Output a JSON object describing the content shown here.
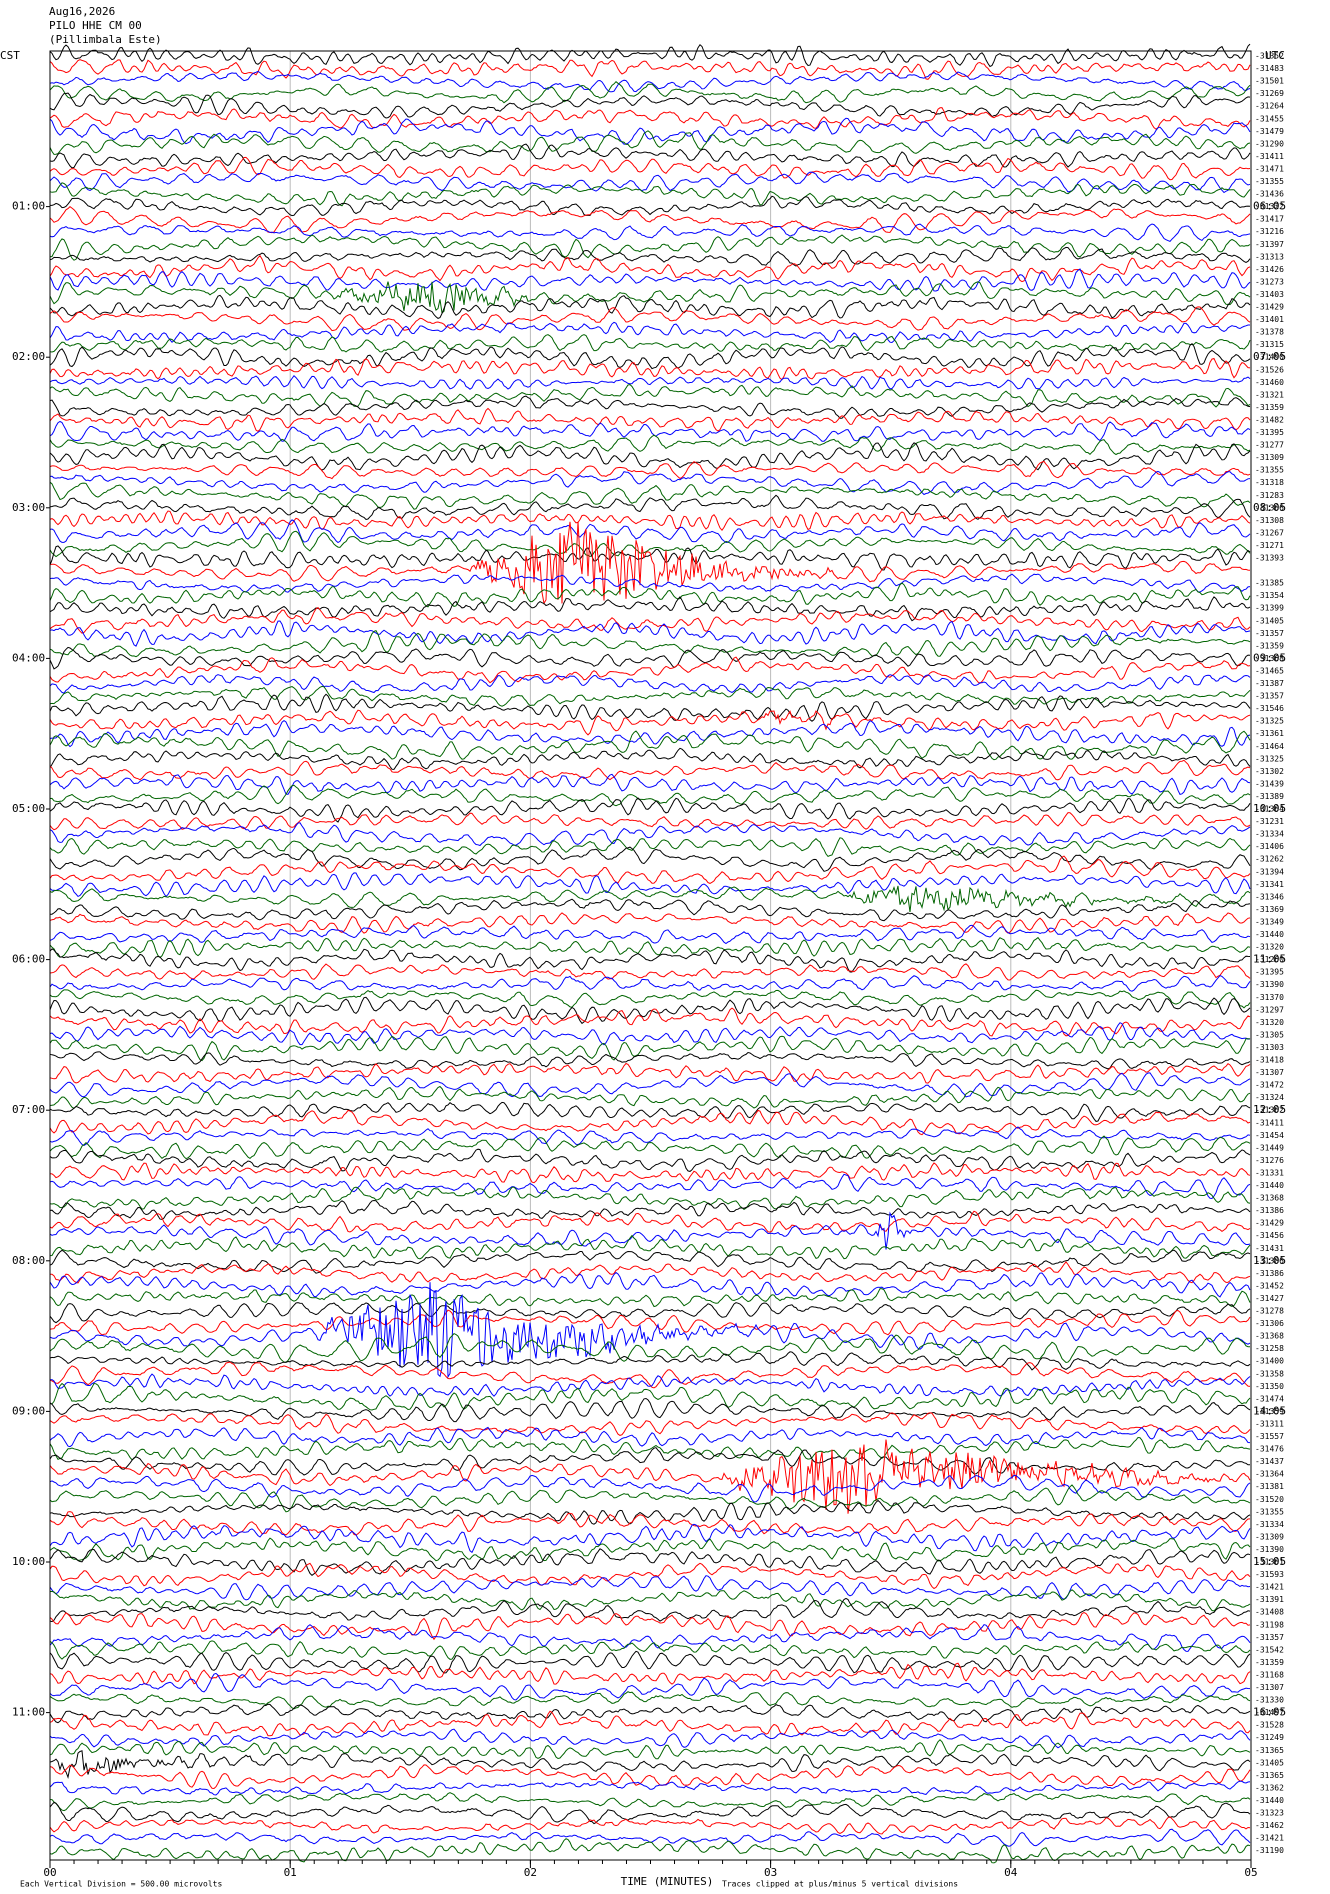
{
  "chart_data": {
    "type": "helicorder",
    "title": "Aug16,2026",
    "subtitle": "PILO HHE CM 00",
    "station": "(Pillimbala Este)",
    "left_axis_label": "CST",
    "right_axis_label": "UTC",
    "left_times": [
      "01:00",
      "02:00",
      "03:00",
      "04:00",
      "05:00",
      "06:00",
      "07:00",
      "08:00",
      "09:00",
      "10:00",
      "11:00"
    ],
    "right_times": [
      "06:05",
      "07:05",
      "08:05",
      "09:05",
      "10:05",
      "11:05",
      "12:05",
      "13:05",
      "14:05",
      "15:05",
      "16:05"
    ],
    "trace_labels": [
      "-31352",
      "-31483",
      "-31501",
      "-31269",
      "-31264",
      "-31455",
      "-31479",
      "-31290",
      "-31411",
      "-31471",
      "-31355",
      "-31436",
      "-31322",
      "-31417",
      "-31216",
      "-31397",
      "-31313",
      "-31426",
      "-31273",
      "-31403",
      "-31429",
      "-31401",
      "-31378",
      "-31315",
      "-31490",
      "-31526",
      "-31460",
      "-31321",
      "-31359",
      "-31482",
      "-31395",
      "-31277",
      "-31309",
      "-31355",
      "-31318",
      "-31283",
      "-31366",
      "-31308",
      "-31267",
      "-31271",
      "-31393",
      null,
      "-31385",
      "-31354",
      "-31399",
      "-31405",
      "-31357",
      "-31359",
      "-31368",
      "-31465",
      "-31387",
      "-31357",
      "-31546",
      "-31325",
      "-31361",
      "-31464",
      "-31325",
      "-31302",
      "-31439",
      "-31389",
      "-31364",
      "-31231",
      "-31334",
      "-31406",
      "-31262",
      "-31394",
      "-31341",
      "-31346",
      "-31369",
      "-31349",
      "-31440",
      "-31320",
      "-31260",
      "-31395",
      "-31390",
      "-31370",
      "-31297",
      "-31320",
      "-31305",
      "-31303",
      "-31418",
      "-31307",
      "-31472",
      "-31324",
      "-31362",
      "-31411",
      "-31454",
      "-31449",
      "-31276",
      "-31331",
      "-31440",
      "-31368",
      "-31386",
      "-31429",
      "-31456",
      "-31431",
      "-31386",
      "-31386",
      "-31452",
      "-31427",
      "-31278",
      "-31306",
      "-31368",
      "-31258",
      "-31400",
      "-31358",
      "-31350",
      "-31474",
      "-31359",
      "-31311",
      "-31557",
      "-31476",
      "-31437",
      "-31364",
      "-31381",
      "-31520",
      "-31355",
      "-31334",
      "-31309",
      "-31390",
      "-31361",
      "-31593",
      "-31421",
      "-31391",
      "-31408",
      "-31198",
      "-31357",
      "-31542",
      "-31359",
      "-31168",
      "-31307",
      "-31330",
      "-31497",
      "-31528",
      "-31249",
      "-31365",
      "-31405",
      "-31365",
      "-31362",
      "-31440",
      "-31323",
      "-31462",
      "-31421",
      "-31190"
    ],
    "trace_colors": [
      "#000000",
      "#ff0000",
      "#0000ff",
      "#006400"
    ],
    "xlabel": "TIME (MINUTES)",
    "xlim": [
      0,
      5
    ],
    "xticks": [
      {
        "value": 0,
        "label": "00"
      },
      {
        "value": 1,
        "label": "01"
      },
      {
        "value": 2,
        "label": "02"
      },
      {
        "value": 3,
        "label": "03"
      },
      {
        "value": 4,
        "label": "04"
      },
      {
        "value": 5,
        "label": "05"
      }
    ],
    "grid": true,
    "footnote_left": "Each Vertical Division =  500.00 microvolts",
    "footnote_right": "Traces clipped at plus/minus 5 vertical divisions"
  }
}
